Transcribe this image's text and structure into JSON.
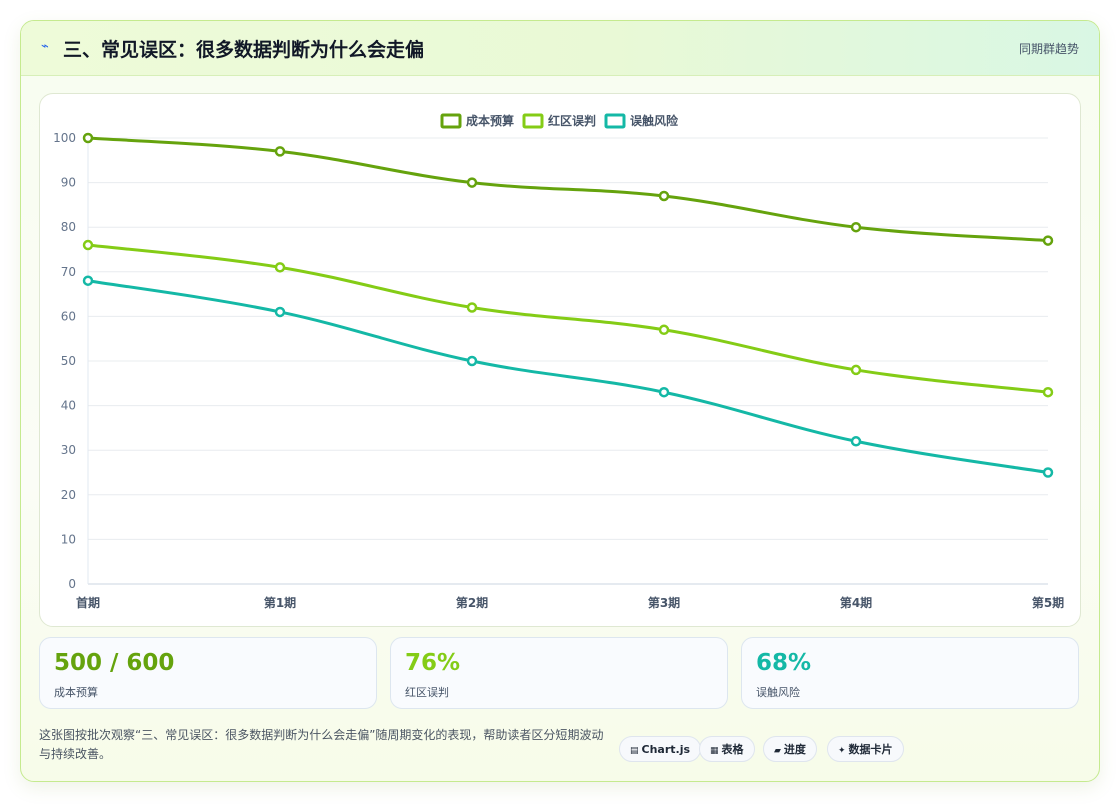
{
  "header": {
    "icon": "lightning-icon",
    "title": "三、常见误区：很多数据判断为什么会走偏",
    "right_label": "同期群趋势"
  },
  "chart_data": {
    "type": "line",
    "title": "",
    "xlabel": "",
    "ylabel": "",
    "categories": [
      "首期",
      "第1期",
      "第2期",
      "第3期",
      "第4期",
      "第5期"
    ],
    "ylim": [
      0,
      100
    ],
    "y_ticks": [
      0,
      10,
      20,
      30,
      40,
      50,
      60,
      70,
      80,
      90,
      100
    ],
    "grid": true,
    "legend_position": "top-center",
    "series": [
      {
        "name": "成本预算",
        "color": "#65a30d",
        "values": [
          100,
          97,
          90,
          87,
          80,
          77
        ]
      },
      {
        "name": "红区误判",
        "color": "#84cc16",
        "values": [
          76,
          71,
          62,
          57,
          48,
          43
        ]
      },
      {
        "name": "误触风险",
        "color": "#14b8a6",
        "values": [
          68,
          61,
          50,
          43,
          32,
          25
        ]
      }
    ]
  },
  "stats": [
    {
      "value": "500 / 600",
      "label": "成本预算",
      "color": "#65a30d"
    },
    {
      "value": "76%",
      "label": "红区误判",
      "color": "#84cc16"
    },
    {
      "value": "68%",
      "label": "误触风险",
      "color": "#14b8a6"
    }
  ],
  "footer": {
    "description": "这张图按批次观察“三、常见误区：很多数据判断为什么会走偏”随周期变化的表现，帮助读者区分短期波动与持续改善。",
    "tags": [
      {
        "icon": "chart-icon",
        "glyph": "▤",
        "label": "Chart.js"
      },
      {
        "icon": "table-icon",
        "glyph": "▦",
        "label": "表格"
      },
      {
        "icon": "progress-icon",
        "glyph": "▰",
        "label": "进度"
      },
      {
        "icon": "sparkle-icon",
        "glyph": "✦",
        "label": "数据卡片"
      }
    ]
  }
}
